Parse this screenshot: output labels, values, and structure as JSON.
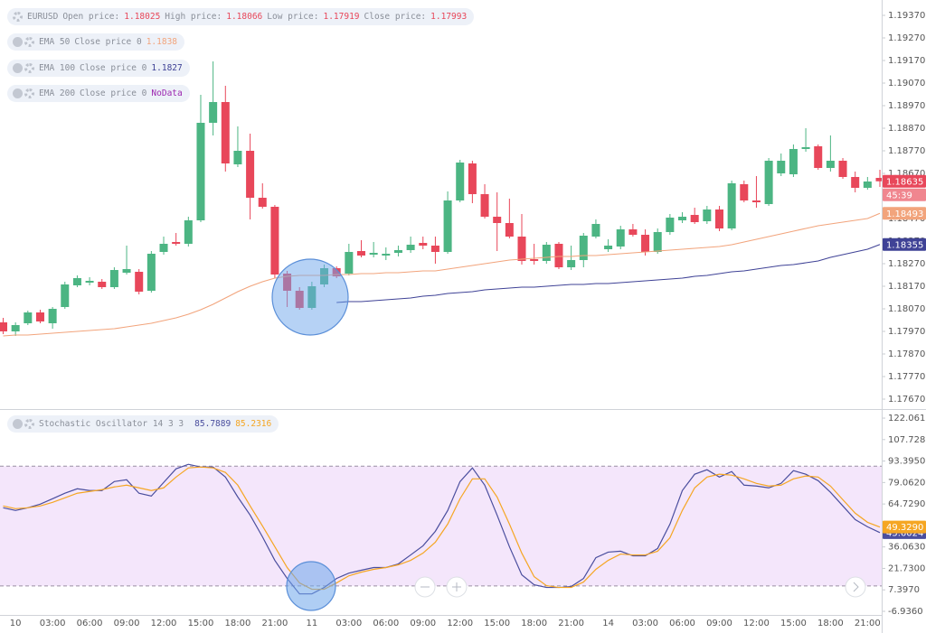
{
  "chart_data": [
    {
      "type": "candlestick",
      "symbol": "EURUSD",
      "ohlc_labels": [
        "Open price:",
        "High price:",
        "Low price:",
        "Close price:"
      ],
      "ohlc_values": [
        1.18025,
        1.18066,
        1.17919,
        1.17993
      ],
      "categories": [
        null,
        "10",
        null,
        null,
        "03:00",
        null,
        null,
        "06:00",
        null,
        null,
        "09:00",
        null,
        null,
        "12:00",
        null,
        null,
        "15:00",
        null,
        null,
        "18:00",
        null,
        null,
        "21:00",
        null,
        null,
        "11",
        null,
        null,
        "03:00",
        null,
        null,
        "06:00",
        null,
        null,
        "09:00",
        null,
        null,
        "12:00",
        null,
        null,
        "15:00",
        null,
        null,
        "18:00",
        null,
        null,
        "21:00",
        null,
        null,
        "14",
        null,
        null,
        "03:00",
        null,
        null,
        "06:00",
        null,
        null,
        "09:00",
        null,
        null,
        "12:00",
        null,
        null,
        "15:00",
        null,
        null,
        "18:00",
        null,
        null,
        "21:00",
        null
      ],
      "open": [
        1.1801,
        1.1797,
        1.18006,
        1.18054,
        1.18006,
        1.18078,
        1.18174,
        1.18186,
        1.1819,
        1.18166,
        1.1823,
        1.18234,
        1.1815,
        1.18322,
        1.18366,
        1.18358,
        1.18462,
        1.18894,
        1.18986,
        1.1871,
        1.1877,
        1.18562,
        1.18522,
        1.18226,
        1.1815,
        1.18074,
        1.18178,
        1.1825,
        1.18226,
        1.18326,
        1.1831,
        1.18306,
        1.18318,
        1.1833,
        1.18362,
        1.1835,
        1.18322,
        1.1855,
        1.18714,
        1.18578,
        1.18478,
        1.1845,
        1.1839,
        1.1829,
        1.18282,
        1.18358,
        1.18254,
        1.18286,
        1.1839,
        1.18334,
        1.18346,
        1.18422,
        1.18398,
        1.18322,
        1.1841,
        1.18462,
        1.18486,
        1.18458,
        1.1851,
        1.18426,
        1.18622,
        1.1855,
        1.18534,
        1.1867,
        1.18666,
        1.18778,
        1.1879,
        1.18694,
        1.18726,
        1.18654,
        1.18606,
        1.1865
      ],
      "high": [
        1.1803,
        1.1801,
        1.18062,
        1.18066,
        1.18078,
        1.1819,
        1.18218,
        1.1821,
        1.18202,
        1.18254,
        1.1835,
        1.18246,
        1.18326,
        1.1839,
        1.18406,
        1.18478,
        1.19018,
        1.19166,
        1.19058,
        1.18878,
        1.18846,
        1.18626,
        1.1853,
        1.18238,
        1.18166,
        1.1819,
        1.18266,
        1.18258,
        1.18358,
        1.18374,
        1.18366,
        1.18342,
        1.1835,
        1.1839,
        1.1839,
        1.1839,
        1.1859,
        1.1873,
        1.18726,
        1.18622,
        1.18586,
        1.18558,
        1.1849,
        1.18358,
        1.18366,
        1.18366,
        1.1835,
        1.18406,
        1.18466,
        1.18378,
        1.18438,
        1.18446,
        1.18422,
        1.18426,
        1.1849,
        1.18498,
        1.18518,
        1.18526,
        1.18526,
        1.18638,
        1.18638,
        1.18658,
        1.18738,
        1.18758,
        1.18798,
        1.1887,
        1.18798,
        1.18838,
        1.18738,
        1.18678,
        1.18654,
        1.18686
      ],
      "low": [
        1.17958,
        1.1795,
        1.17998,
        1.18006,
        1.17982,
        1.1807,
        1.18166,
        1.18174,
        1.18158,
        1.18158,
        1.18222,
        1.18134,
        1.18142,
        1.1831,
        1.1835,
        1.18346,
        1.18454,
        1.18838,
        1.18678,
        1.18698,
        1.18466,
        1.18514,
        1.18206,
        1.18078,
        1.18066,
        1.18066,
        1.18166,
        1.18206,
        1.18218,
        1.18298,
        1.18298,
        1.18286,
        1.18302,
        1.18318,
        1.18334,
        1.1827,
        1.18314,
        1.18542,
        1.18538,
        1.1847,
        1.18326,
        1.18382,
        1.18266,
        1.18266,
        1.1827,
        1.18246,
        1.18242,
        1.18254,
        1.18382,
        1.18322,
        1.18334,
        1.1839,
        1.18306,
        1.18314,
        1.18398,
        1.1845,
        1.18446,
        1.18446,
        1.18414,
        1.18418,
        1.18542,
        1.18518,
        1.18526,
        1.18658,
        1.18654,
        1.18766,
        1.18686,
        1.18678,
        1.18646,
        1.18586,
        1.18598,
        1.1861
      ],
      "close": [
        1.1797,
        1.17998,
        1.18054,
        1.18014,
        1.1807,
        1.18178,
        1.18206,
        1.18194,
        1.18166,
        1.18242,
        1.18246,
        1.18146,
        1.18314,
        1.18358,
        1.18358,
        1.18462,
        1.18894,
        1.18986,
        1.18714,
        1.1877,
        1.18562,
        1.18522,
        1.18222,
        1.1815,
        1.18074,
        1.1817,
        1.1825,
        1.18214,
        1.18322,
        1.18306,
        1.18318,
        1.18314,
        1.1833,
        1.18354,
        1.1835,
        1.18322,
        1.1855,
        1.18718,
        1.18578,
        1.18478,
        1.1845,
        1.1839,
        1.18282,
        1.18282,
        1.18354,
        1.18254,
        1.18286,
        1.18394,
        1.18446,
        1.1835,
        1.18422,
        1.18398,
        1.18322,
        1.1841,
        1.18474,
        1.18478,
        1.18454,
        1.1851,
        1.18426,
        1.18626,
        1.1855,
        1.18542,
        1.18726,
        1.18726,
        1.18778,
        1.18786,
        1.18694,
        1.18726,
        1.18654,
        1.18606,
        1.18634,
        1.18635
      ],
      "up_color": "#4cb583",
      "down_color": "#e8475a",
      "series": [
        {
          "name": "EMA 50",
          "source": "Close price 0",
          "value": 1.1838,
          "color": "#f2a47c",
          "values": [
            1.1795,
            1.17954,
            1.17954,
            1.17958,
            1.17962,
            1.17966,
            1.1797,
            1.17974,
            1.17978,
            1.17982,
            1.1799,
            1.17998,
            1.18006,
            1.18018,
            1.1803,
            1.18046,
            1.18066,
            1.1809,
            1.18118,
            1.18146,
            1.1817,
            1.1819,
            1.18206,
            1.18214,
            1.18218,
            1.18218,
            1.18218,
            1.18222,
            1.18222,
            1.18226,
            1.18226,
            1.1823,
            1.1823,
            1.18234,
            1.18238,
            1.18238,
            1.18246,
            1.18254,
            1.18262,
            1.1827,
            1.18278,
            1.18286,
            1.1829,
            1.18294,
            1.18298,
            1.18302,
            1.18302,
            1.18306,
            1.18306,
            1.1831,
            1.18314,
            1.18318,
            1.18322,
            1.18326,
            1.1833,
            1.18334,
            1.18338,
            1.18342,
            1.18346,
            1.18354,
            1.18366,
            1.18378,
            1.1839,
            1.18402,
            1.18414,
            1.18426,
            1.18438,
            1.18446,
            1.18454,
            1.18462,
            1.1847,
            1.18493
          ]
        },
        {
          "name": "EMA 100",
          "source": "Close price 0",
          "value": 1.1827,
          "color": "#3f4296",
          "values": [
            null,
            null,
            null,
            null,
            null,
            null,
            null,
            null,
            null,
            null,
            null,
            null,
            null,
            null,
            null,
            null,
            null,
            null,
            null,
            null,
            null,
            null,
            null,
            null,
            null,
            null,
            null,
            1.18098,
            1.18102,
            1.18102,
            1.18106,
            1.1811,
            1.18114,
            1.18118,
            1.18126,
            1.1813,
            1.18138,
            1.18142,
            1.18146,
            1.18154,
            1.18158,
            1.18162,
            1.18166,
            1.18166,
            1.1817,
            1.18174,
            1.18178,
            1.18178,
            1.18182,
            1.18182,
            1.18186,
            1.1819,
            1.18194,
            1.18198,
            1.18202,
            1.18206,
            1.18214,
            1.18218,
            1.18226,
            1.18234,
            1.18238,
            1.18246,
            1.18254,
            1.18262,
            1.18266,
            1.18274,
            1.18282,
            1.18298,
            1.1831,
            1.18322,
            1.18334,
            1.18355
          ]
        },
        {
          "name": "EMA 200",
          "source": "Close price 0",
          "value": "NoData",
          "color": "#9c27b0"
        }
      ],
      "countdown": "45:39",
      "ylim": [
        1.1763,
        1.19438
      ],
      "yticks": [
        {
          "value": 1.1937,
          "label": "1.19370"
        },
        {
          "value": 1.1927,
          "label": "1.19270"
        },
        {
          "value": 1.1917,
          "label": "1.19170"
        },
        {
          "value": 1.1907,
          "label": "1.19070"
        },
        {
          "value": 1.1897,
          "label": "1.18970"
        },
        {
          "value": 1.1887,
          "label": "1.18870"
        },
        {
          "value": 1.1877,
          "label": "1.18770"
        },
        {
          "value": 1.1867,
          "label": "1.18670"
        },
        {
          "value": 1.1857,
          "label": "1.18570"
        },
        {
          "value": 1.1847,
          "label": "1.18470"
        },
        {
          "value": 1.1837,
          "label": "1.18370"
        },
        {
          "value": 1.1827,
          "label": "1.18270"
        },
        {
          "value": 1.1817,
          "label": "1.18170"
        },
        {
          "value": 1.1807,
          "label": "1.18070"
        },
        {
          "value": 1.1797,
          "label": "1.17970"
        },
        {
          "value": 1.1787,
          "label": "1.17870"
        },
        {
          "value": 1.1777,
          "label": "1.17770"
        },
        {
          "value": 1.1767,
          "label": "1.17670"
        }
      ]
    },
    {
      "type": "line",
      "title": "Stochastic Oscillator 14 3 3",
      "series": [
        {
          "header_value": 85.7889,
          "last_label": "45.6024",
          "color": "#4a4e9e",
          "values": [
            62.2,
            60.4,
            62.2,
            64.6,
            68.2,
            71.9,
            74.9,
            73.7,
            73.7,
            79.7,
            80.9,
            71.9,
            70.0,
            79.1,
            88.2,
            91.2,
            89.4,
            89.4,
            82.7,
            69.4,
            57.3,
            42.8,
            27.1,
            15.0,
            4.7,
            4.7,
            9.0,
            15.0,
            18.6,
            20.5,
            22.3,
            22.3,
            24.7,
            30.7,
            36.8,
            46.5,
            60.4,
            79.7,
            88.8,
            77.3,
            57.3,
            36.2,
            17.4,
            10.8,
            9.0,
            9.0,
            9.6,
            15.0,
            28.9,
            32.6,
            33.2,
            30.1,
            30.1,
            35.0,
            51.3,
            73.7,
            84.6,
            87.6,
            82.7,
            86.4,
            77.3,
            76.7,
            75.5,
            78.5,
            87.0,
            84.6,
            80.3,
            72.5,
            63.4,
            54.3,
            49.5,
            45.6024
          ]
        },
        {
          "header_value": 85.2316,
          "last_label": "49.3290",
          "color": "#f5a623",
          "values": [
            63.4,
            61.6,
            62.2,
            63.4,
            65.8,
            68.8,
            71.9,
            73.1,
            74.3,
            76.1,
            77.3,
            75.5,
            73.7,
            75.5,
            82.7,
            88.8,
            89.4,
            88.8,
            85.8,
            77.3,
            63.4,
            50.1,
            36.2,
            22.3,
            12.0,
            7.8,
            7.8,
            12.0,
            16.8,
            19.2,
            21.1,
            22.3,
            24.1,
            27.1,
            31.9,
            39.2,
            51.3,
            68.2,
            81.5,
            81.5,
            69.4,
            51.3,
            31.9,
            16.2,
            10.2,
            9.0,
            9.0,
            12.6,
            21.1,
            27.1,
            31.3,
            30.7,
            30.7,
            33.2,
            42.2,
            60.4,
            75.5,
            82.7,
            84.6,
            84.0,
            81.5,
            78.5,
            76.7,
            77.3,
            81.5,
            83.4,
            82.7,
            76.7,
            67.6,
            58.6,
            52.5,
            49.329
          ]
        }
      ],
      "bands": [
        90,
        10
      ],
      "band_color": "#f4e6fb",
      "ylim": [
        -8.75,
        126.9
      ],
      "yticks": [
        {
          "value": 122.061,
          "label": "122.0610"
        },
        {
          "value": 107.728,
          "label": "107.7280"
        },
        {
          "value": 93.395,
          "label": "93.3950"
        },
        {
          "value": 79.062,
          "label": "79.0620"
        },
        {
          "value": 64.729,
          "label": "64.7290"
        },
        {
          "value": 50.396,
          "label": "50.3960"
        },
        {
          "value": 36.063,
          "label": "36.0630"
        },
        {
          "value": 21.73,
          "label": "21.7300"
        },
        {
          "value": 7.397,
          "label": "7.3970"
        },
        {
          "value": -6.936,
          "label": "-6.9360"
        }
      ]
    }
  ]
}
